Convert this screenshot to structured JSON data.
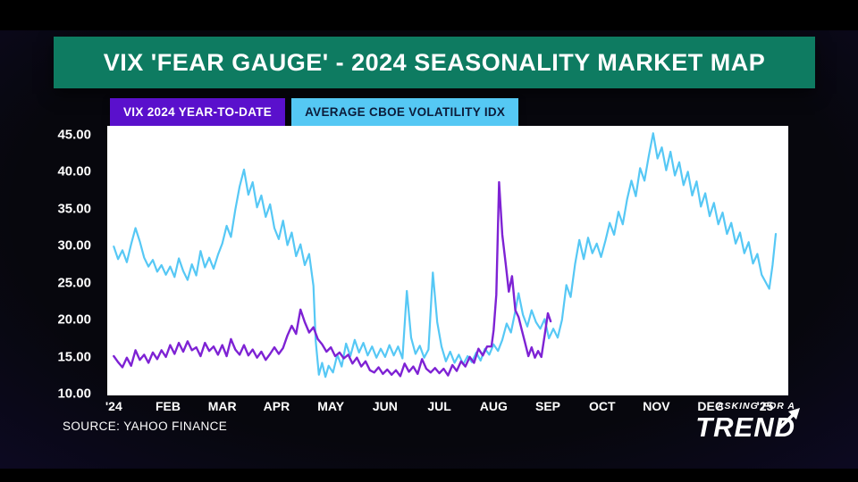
{
  "header": {
    "title": "VIX 'FEAR GAUGE' - 2024 SEASONALITY MARKET MAP"
  },
  "legend": [
    {
      "label": "VIX 2024 YEAR-TO-DATE",
      "color": "#5a10cc",
      "text_color": "#ffffff"
    },
    {
      "label": "AVERAGE CBOE VOLATILITY IDX",
      "color": "#55c8f4",
      "text_color": "#0c1c3a"
    }
  ],
  "source": "SOURCE: YAHOO FINANCE",
  "brand": {
    "line1": "ASKING FOR A",
    "line2": "TREND"
  },
  "colors": {
    "banner": "#0e7b61",
    "plot_background": "#ffffff",
    "background_glow": "#4b2ba6",
    "line_vix_2024": "#7e22d4",
    "line_average": "#56c8f5",
    "axis_text": "#ffffff"
  },
  "chart_data": {
    "type": "line",
    "title": "VIX 'FEAR GAUGE' - 2024 SEASONALITY MARKET MAP",
    "grid": false,
    "legend_position": "top",
    "x_axis": {
      "unit": "months since Jan 2024",
      "tick_labels": [
        "'24",
        "FEB",
        "MAR",
        "APR",
        "MAY",
        "JUN",
        "JUL",
        "AUG",
        "SEP",
        "OCT",
        "NOV",
        "DEC",
        "'25"
      ],
      "min": -0.12,
      "max": 12.43
    },
    "y_axis": {
      "ticks": [
        45,
        40,
        35,
        30,
        25,
        20,
        15,
        10
      ],
      "tick_labels": [
        "45.00",
        "40.00",
        "35.00",
        "30.00",
        "25.00",
        "20.00",
        "15.00",
        "10.00"
      ],
      "min": 9.8,
      "max": 46.2
    },
    "series": [
      {
        "name": "VIX 2024 YEAR-TO-DATE",
        "color": "#7e22d4",
        "width": 2.4,
        "points": [
          [
            0,
            15.1
          ],
          [
            0.08,
            14.3
          ],
          [
            0.16,
            13.6
          ],
          [
            0.24,
            14.9
          ],
          [
            0.32,
            13.8
          ],
          [
            0.4,
            15.9
          ],
          [
            0.48,
            14.6
          ],
          [
            0.56,
            15.3
          ],
          [
            0.64,
            14.2
          ],
          [
            0.72,
            15.6
          ],
          [
            0.8,
            14.7
          ],
          [
            0.88,
            15.9
          ],
          [
            0.96,
            15.0
          ],
          [
            1.04,
            16.6
          ],
          [
            1.12,
            15.4
          ],
          [
            1.2,
            16.9
          ],
          [
            1.28,
            15.7
          ],
          [
            1.36,
            17.1
          ],
          [
            1.44,
            15.9
          ],
          [
            1.52,
            16.3
          ],
          [
            1.6,
            15.1
          ],
          [
            1.68,
            16.9
          ],
          [
            1.76,
            15.8
          ],
          [
            1.84,
            16.4
          ],
          [
            1.92,
            15.3
          ],
          [
            2.0,
            16.6
          ],
          [
            2.08,
            15.1
          ],
          [
            2.16,
            17.4
          ],
          [
            2.24,
            16.0
          ],
          [
            2.32,
            15.3
          ],
          [
            2.4,
            16.6
          ],
          [
            2.48,
            15.2
          ],
          [
            2.56,
            16.0
          ],
          [
            2.64,
            14.9
          ],
          [
            2.72,
            15.7
          ],
          [
            2.8,
            14.6
          ],
          [
            2.88,
            15.4
          ],
          [
            2.96,
            16.3
          ],
          [
            3.04,
            15.4
          ],
          [
            3.12,
            16.2
          ],
          [
            3.2,
            17.9
          ],
          [
            3.28,
            19.2
          ],
          [
            3.36,
            18.1
          ],
          [
            3.44,
            21.4
          ],
          [
            3.52,
            19.7
          ],
          [
            3.6,
            18.3
          ],
          [
            3.68,
            19.0
          ],
          [
            3.76,
            17.4
          ],
          [
            3.84,
            16.7
          ],
          [
            3.92,
            15.7
          ],
          [
            4.0,
            16.3
          ],
          [
            4.08,
            15.1
          ],
          [
            4.16,
            15.6
          ],
          [
            4.24,
            14.8
          ],
          [
            4.32,
            15.3
          ],
          [
            4.4,
            14.1
          ],
          [
            4.48,
            14.9
          ],
          [
            4.56,
            13.7
          ],
          [
            4.64,
            14.4
          ],
          [
            4.72,
            13.2
          ],
          [
            4.8,
            12.9
          ],
          [
            4.88,
            13.6
          ],
          [
            4.96,
            12.7
          ],
          [
            5.04,
            13.3
          ],
          [
            5.12,
            12.6
          ],
          [
            5.2,
            13.2
          ],
          [
            5.28,
            12.4
          ],
          [
            5.36,
            14.1
          ],
          [
            5.44,
            13.0
          ],
          [
            5.52,
            13.7
          ],
          [
            5.6,
            12.7
          ],
          [
            5.68,
            14.7
          ],
          [
            5.76,
            13.4
          ],
          [
            5.84,
            12.9
          ],
          [
            5.92,
            13.5
          ],
          [
            6.0,
            12.8
          ],
          [
            6.08,
            13.4
          ],
          [
            6.16,
            12.5
          ],
          [
            6.24,
            13.9
          ],
          [
            6.32,
            13.1
          ],
          [
            6.4,
            14.4
          ],
          [
            6.48,
            13.7
          ],
          [
            6.56,
            15.0
          ],
          [
            6.64,
            14.2
          ],
          [
            6.72,
            16.1
          ],
          [
            6.8,
            15.2
          ],
          [
            6.88,
            16.4
          ],
          [
            6.96,
            16.4
          ],
          [
            7.0,
            18.6
          ],
          [
            7.05,
            23.4
          ],
          [
            7.1,
            38.6
          ],
          [
            7.16,
            31.5
          ],
          [
            7.22,
            27.7
          ],
          [
            7.28,
            23.8
          ],
          [
            7.34,
            25.9
          ],
          [
            7.4,
            21.3
          ],
          [
            7.46,
            20.4
          ],
          [
            7.52,
            18.6
          ],
          [
            7.58,
            16.9
          ],
          [
            7.64,
            15.1
          ],
          [
            7.7,
            16.3
          ],
          [
            7.76,
            14.9
          ],
          [
            7.82,
            15.8
          ],
          [
            7.88,
            15.0
          ],
          [
            7.94,
            17.9
          ],
          [
            8.0,
            20.9
          ],
          [
            8.05,
            19.8
          ]
        ]
      },
      {
        "name": "AVERAGE CBOE VOLATILITY IDX",
        "color": "#56c8f5",
        "width": 2.2,
        "points": [
          [
            0,
            29.9
          ],
          [
            0.08,
            28.2
          ],
          [
            0.16,
            29.4
          ],
          [
            0.24,
            27.8
          ],
          [
            0.32,
            30.2
          ],
          [
            0.4,
            32.4
          ],
          [
            0.48,
            30.6
          ],
          [
            0.56,
            28.4
          ],
          [
            0.64,
            27.2
          ],
          [
            0.72,
            28.1
          ],
          [
            0.8,
            26.5
          ],
          [
            0.88,
            27.4
          ],
          [
            0.96,
            26.1
          ],
          [
            1.04,
            27.2
          ],
          [
            1.12,
            25.8
          ],
          [
            1.2,
            28.3
          ],
          [
            1.28,
            26.6
          ],
          [
            1.36,
            25.4
          ],
          [
            1.44,
            27.5
          ],
          [
            1.52,
            26.0
          ],
          [
            1.6,
            29.3
          ],
          [
            1.68,
            27.1
          ],
          [
            1.76,
            28.4
          ],
          [
            1.84,
            26.9
          ],
          [
            1.92,
            28.8
          ],
          [
            2.0,
            30.3
          ],
          [
            2.08,
            32.7
          ],
          [
            2.16,
            31.2
          ],
          [
            2.24,
            34.9
          ],
          [
            2.32,
            38.0
          ],
          [
            2.4,
            40.3
          ],
          [
            2.48,
            36.9
          ],
          [
            2.56,
            38.6
          ],
          [
            2.64,
            35.2
          ],
          [
            2.72,
            36.8
          ],
          [
            2.8,
            33.9
          ],
          [
            2.88,
            35.6
          ],
          [
            2.96,
            32.4
          ],
          [
            3.04,
            30.9
          ],
          [
            3.12,
            33.4
          ],
          [
            3.2,
            30.1
          ],
          [
            3.28,
            31.8
          ],
          [
            3.36,
            28.6
          ],
          [
            3.44,
            30.2
          ],
          [
            3.52,
            27.4
          ],
          [
            3.6,
            28.9
          ],
          [
            3.68,
            24.6
          ],
          [
            3.72,
            17.2
          ],
          [
            3.78,
            12.6
          ],
          [
            3.84,
            14.2
          ],
          [
            3.9,
            12.3
          ],
          [
            3.96,
            13.8
          ],
          [
            4.04,
            12.9
          ],
          [
            4.12,
            15.3
          ],
          [
            4.2,
            13.7
          ],
          [
            4.28,
            16.8
          ],
          [
            4.36,
            15.1
          ],
          [
            4.44,
            17.3
          ],
          [
            4.52,
            15.6
          ],
          [
            4.6,
            16.9
          ],
          [
            4.68,
            15.2
          ],
          [
            4.76,
            16.4
          ],
          [
            4.84,
            14.9
          ],
          [
            4.92,
            16.1
          ],
          [
            5.0,
            15.0
          ],
          [
            5.08,
            16.6
          ],
          [
            5.16,
            15.2
          ],
          [
            5.24,
            16.4
          ],
          [
            5.32,
            14.8
          ],
          [
            5.4,
            23.9
          ],
          [
            5.48,
            17.6
          ],
          [
            5.56,
            15.4
          ],
          [
            5.64,
            16.5
          ],
          [
            5.72,
            14.9
          ],
          [
            5.8,
            16.0
          ],
          [
            5.88,
            26.4
          ],
          [
            5.96,
            19.7
          ],
          [
            6.04,
            16.4
          ],
          [
            6.12,
            14.4
          ],
          [
            6.2,
            15.7
          ],
          [
            6.28,
            14.2
          ],
          [
            6.36,
            15.3
          ],
          [
            6.44,
            14.0
          ],
          [
            6.52,
            15.1
          ],
          [
            6.6,
            14.3
          ],
          [
            6.68,
            15.6
          ],
          [
            6.76,
            14.5
          ],
          [
            6.84,
            16.1
          ],
          [
            6.92,
            15.3
          ],
          [
            7.0,
            16.7
          ],
          [
            7.08,
            15.8
          ],
          [
            7.16,
            17.3
          ],
          [
            7.24,
            19.5
          ],
          [
            7.32,
            18.3
          ],
          [
            7.4,
            21.2
          ],
          [
            7.46,
            23.6
          ],
          [
            7.54,
            20.7
          ],
          [
            7.62,
            19.1
          ],
          [
            7.7,
            21.3
          ],
          [
            7.78,
            19.7
          ],
          [
            7.86,
            18.8
          ],
          [
            7.94,
            20.1
          ],
          [
            8.02,
            17.5
          ],
          [
            8.1,
            18.8
          ],
          [
            8.18,
            17.6
          ],
          [
            8.26,
            20.0
          ],
          [
            8.34,
            24.7
          ],
          [
            8.42,
            23.1
          ],
          [
            8.5,
            27.5
          ],
          [
            8.58,
            30.8
          ],
          [
            8.66,
            28.2
          ],
          [
            8.74,
            31.1
          ],
          [
            8.82,
            29.0
          ],
          [
            8.9,
            30.3
          ],
          [
            8.98,
            28.5
          ],
          [
            9.06,
            30.7
          ],
          [
            9.14,
            33.1
          ],
          [
            9.22,
            31.5
          ],
          [
            9.3,
            34.6
          ],
          [
            9.38,
            32.9
          ],
          [
            9.46,
            36.3
          ],
          [
            9.54,
            38.8
          ],
          [
            9.62,
            36.7
          ],
          [
            9.7,
            40.5
          ],
          [
            9.78,
            38.8
          ],
          [
            9.86,
            42.2
          ],
          [
            9.94,
            45.2
          ],
          [
            10.02,
            41.8
          ],
          [
            10.1,
            43.3
          ],
          [
            10.18,
            40.2
          ],
          [
            10.26,
            42.7
          ],
          [
            10.34,
            39.5
          ],
          [
            10.42,
            41.3
          ],
          [
            10.5,
            38.2
          ],
          [
            10.58,
            40.0
          ],
          [
            10.66,
            36.8
          ],
          [
            10.74,
            38.7
          ],
          [
            10.82,
            35.3
          ],
          [
            10.9,
            37.1
          ],
          [
            10.98,
            34.0
          ],
          [
            11.06,
            35.8
          ],
          [
            11.14,
            32.9
          ],
          [
            11.22,
            34.5
          ],
          [
            11.3,
            31.6
          ],
          [
            11.38,
            33.1
          ],
          [
            11.46,
            30.3
          ],
          [
            11.54,
            31.8
          ],
          [
            11.62,
            29.0
          ],
          [
            11.7,
            30.5
          ],
          [
            11.78,
            27.6
          ],
          [
            11.86,
            28.9
          ],
          [
            11.94,
            26.1
          ],
          [
            12.02,
            25.0
          ],
          [
            12.08,
            24.2
          ],
          [
            12.14,
            27.4
          ],
          [
            12.2,
            31.6
          ]
        ]
      }
    ]
  }
}
